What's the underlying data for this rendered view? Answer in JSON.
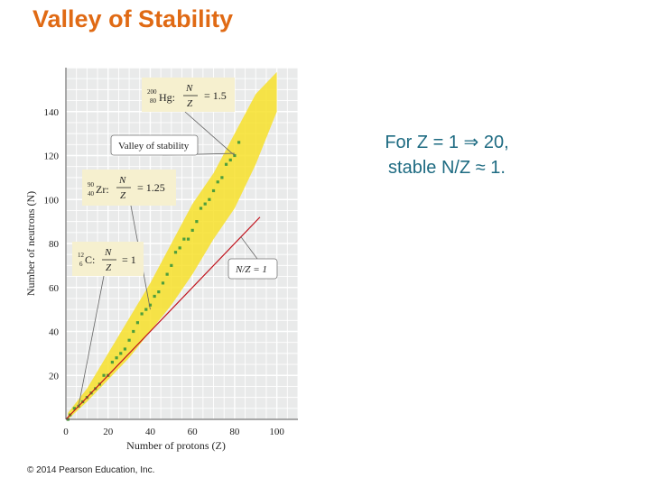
{
  "slide": {
    "title": "Valley of Stability",
    "note_line1": "For Z = 1 ⇒ 20,",
    "note_line2": "stable N/Z ≈ 1.",
    "credit": "© 2014 Pearson Education, Inc."
  },
  "chart_data": {
    "type": "scatter",
    "title": "",
    "xlabel": "Number of protons (Z)",
    "ylabel": "Number of neutrons (N)",
    "xlim": [
      0,
      110
    ],
    "ylim": [
      0,
      160
    ],
    "x_ticks": [
      0,
      20,
      40,
      60,
      80,
      100
    ],
    "y_ticks": [
      20,
      40,
      60,
      80,
      100,
      120,
      140
    ],
    "grid": true,
    "band_color": "#f7e02a",
    "stable_color": "#4e9e3c",
    "line_color": "#c0141e",
    "stable_nuclides_approx": [
      {
        "Z": 1,
        "N": 0
      },
      {
        "Z": 2,
        "N": 2
      },
      {
        "Z": 4,
        "N": 5
      },
      {
        "Z": 6,
        "N": 6
      },
      {
        "Z": 8,
        "N": 8
      },
      {
        "Z": 10,
        "N": 10
      },
      {
        "Z": 12,
        "N": 12
      },
      {
        "Z": 14,
        "N": 14
      },
      {
        "Z": 16,
        "N": 16
      },
      {
        "Z": 18,
        "N": 20
      },
      {
        "Z": 20,
        "N": 20
      },
      {
        "Z": 22,
        "N": 26
      },
      {
        "Z": 24,
        "N": 28
      },
      {
        "Z": 26,
        "N": 30
      },
      {
        "Z": 28,
        "N": 32
      },
      {
        "Z": 30,
        "N": 36
      },
      {
        "Z": 32,
        "N": 40
      },
      {
        "Z": 34,
        "N": 44
      },
      {
        "Z": 36,
        "N": 48
      },
      {
        "Z": 38,
        "N": 50
      },
      {
        "Z": 40,
        "N": 52
      },
      {
        "Z": 42,
        "N": 56
      },
      {
        "Z": 44,
        "N": 58
      },
      {
        "Z": 46,
        "N": 62
      },
      {
        "Z": 48,
        "N": 66
      },
      {
        "Z": 50,
        "N": 70
      },
      {
        "Z": 52,
        "N": 76
      },
      {
        "Z": 54,
        "N": 78
      },
      {
        "Z": 56,
        "N": 82
      },
      {
        "Z": 58,
        "N": 82
      },
      {
        "Z": 60,
        "N": 86
      },
      {
        "Z": 62,
        "N": 90
      },
      {
        "Z": 64,
        "N": 96
      },
      {
        "Z": 66,
        "N": 98
      },
      {
        "Z": 68,
        "N": 100
      },
      {
        "Z": 70,
        "N": 104
      },
      {
        "Z": 72,
        "N": 108
      },
      {
        "Z": 74,
        "N": 110
      },
      {
        "Z": 76,
        "N": 116
      },
      {
        "Z": 78,
        "N": 118
      },
      {
        "Z": 80,
        "N": 120
      },
      {
        "Z": 82,
        "N": 126
      }
    ],
    "band_region_approx": [
      {
        "Z": 1,
        "N_min": 0,
        "N_max": 3
      },
      {
        "Z": 10,
        "N_min": 8,
        "N_max": 14
      },
      {
        "Z": 20,
        "N_min": 18,
        "N_max": 30
      },
      {
        "Z": 30,
        "N_min": 28,
        "N_max": 46
      },
      {
        "Z": 40,
        "N_min": 40,
        "N_max": 62
      },
      {
        "Z": 50,
        "N_min": 52,
        "N_max": 80
      },
      {
        "Z": 60,
        "N_min": 66,
        "N_max": 98
      },
      {
        "Z": 70,
        "N_min": 82,
        "N_max": 112
      },
      {
        "Z": 80,
        "N_min": 96,
        "N_max": 130
      },
      {
        "Z": 90,
        "N_min": 116,
        "N_max": 148
      },
      {
        "Z": 100,
        "N_min": 140,
        "N_max": 158
      }
    ],
    "reference_line": {
      "label": "N/Z = 1",
      "from": [
        0,
        0
      ],
      "to": [
        92,
        92
      ]
    },
    "annotations": [
      {
        "mass_number": "200",
        "atomic_number": "80",
        "symbol": "Hg:",
        "numerator": "N",
        "denominator": "Z",
        "ratio": "= 1.5",
        "target": {
          "Z": 80,
          "N": 120
        }
      },
      {
        "text": "Valley of stability",
        "target": {
          "Z": 80,
          "N": 121
        }
      },
      {
        "mass_number": "90",
        "atomic_number": "40",
        "symbol": "Zr:",
        "numerator": "N",
        "denominator": "Z",
        "ratio": "= 1.25",
        "target": {
          "Z": 40,
          "N": 50
        }
      },
      {
        "mass_number": "12",
        "atomic_number": "6",
        "symbol": "C:",
        "numerator": "N",
        "denominator": "Z",
        "ratio": "= 1",
        "target": {
          "Z": 6,
          "N": 6
        }
      }
    ]
  }
}
